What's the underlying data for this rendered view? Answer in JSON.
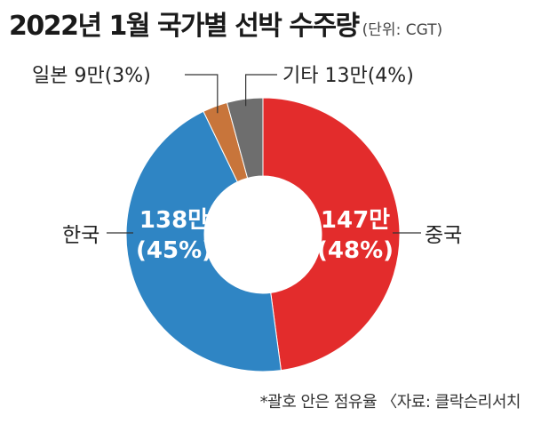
{
  "title": "2022년 1월 국가별 선박 수주량",
  "unit_note": "(단위: CGT)",
  "footnote": "*괄호 안은 점유율 〈자료: 클락슨리서치",
  "colors": {
    "china": "#e32c2c",
    "korea": "#2f85c4",
    "japan": "#c8753b",
    "other": "#6e6e6e"
  },
  "chart_data": {
    "type": "pie",
    "donut": true,
    "slices": [
      {
        "name": "중국",
        "value": 147,
        "share_percent": 48,
        "value_label": "147만",
        "share_label": "(48%)",
        "color": "#e32c2c"
      },
      {
        "name": "한국",
        "value": 138,
        "share_percent": 45,
        "value_label": "138만",
        "share_label": "(45%)",
        "color": "#2f85c4"
      },
      {
        "name": "일본",
        "value": 9,
        "share_percent": 3,
        "label": "일본  9만(3%)",
        "color": "#c8753b"
      },
      {
        "name": "기타",
        "value": 13,
        "share_percent": 4,
        "label": "기타  13만(4%)",
        "color": "#6e6e6e"
      }
    ]
  }
}
